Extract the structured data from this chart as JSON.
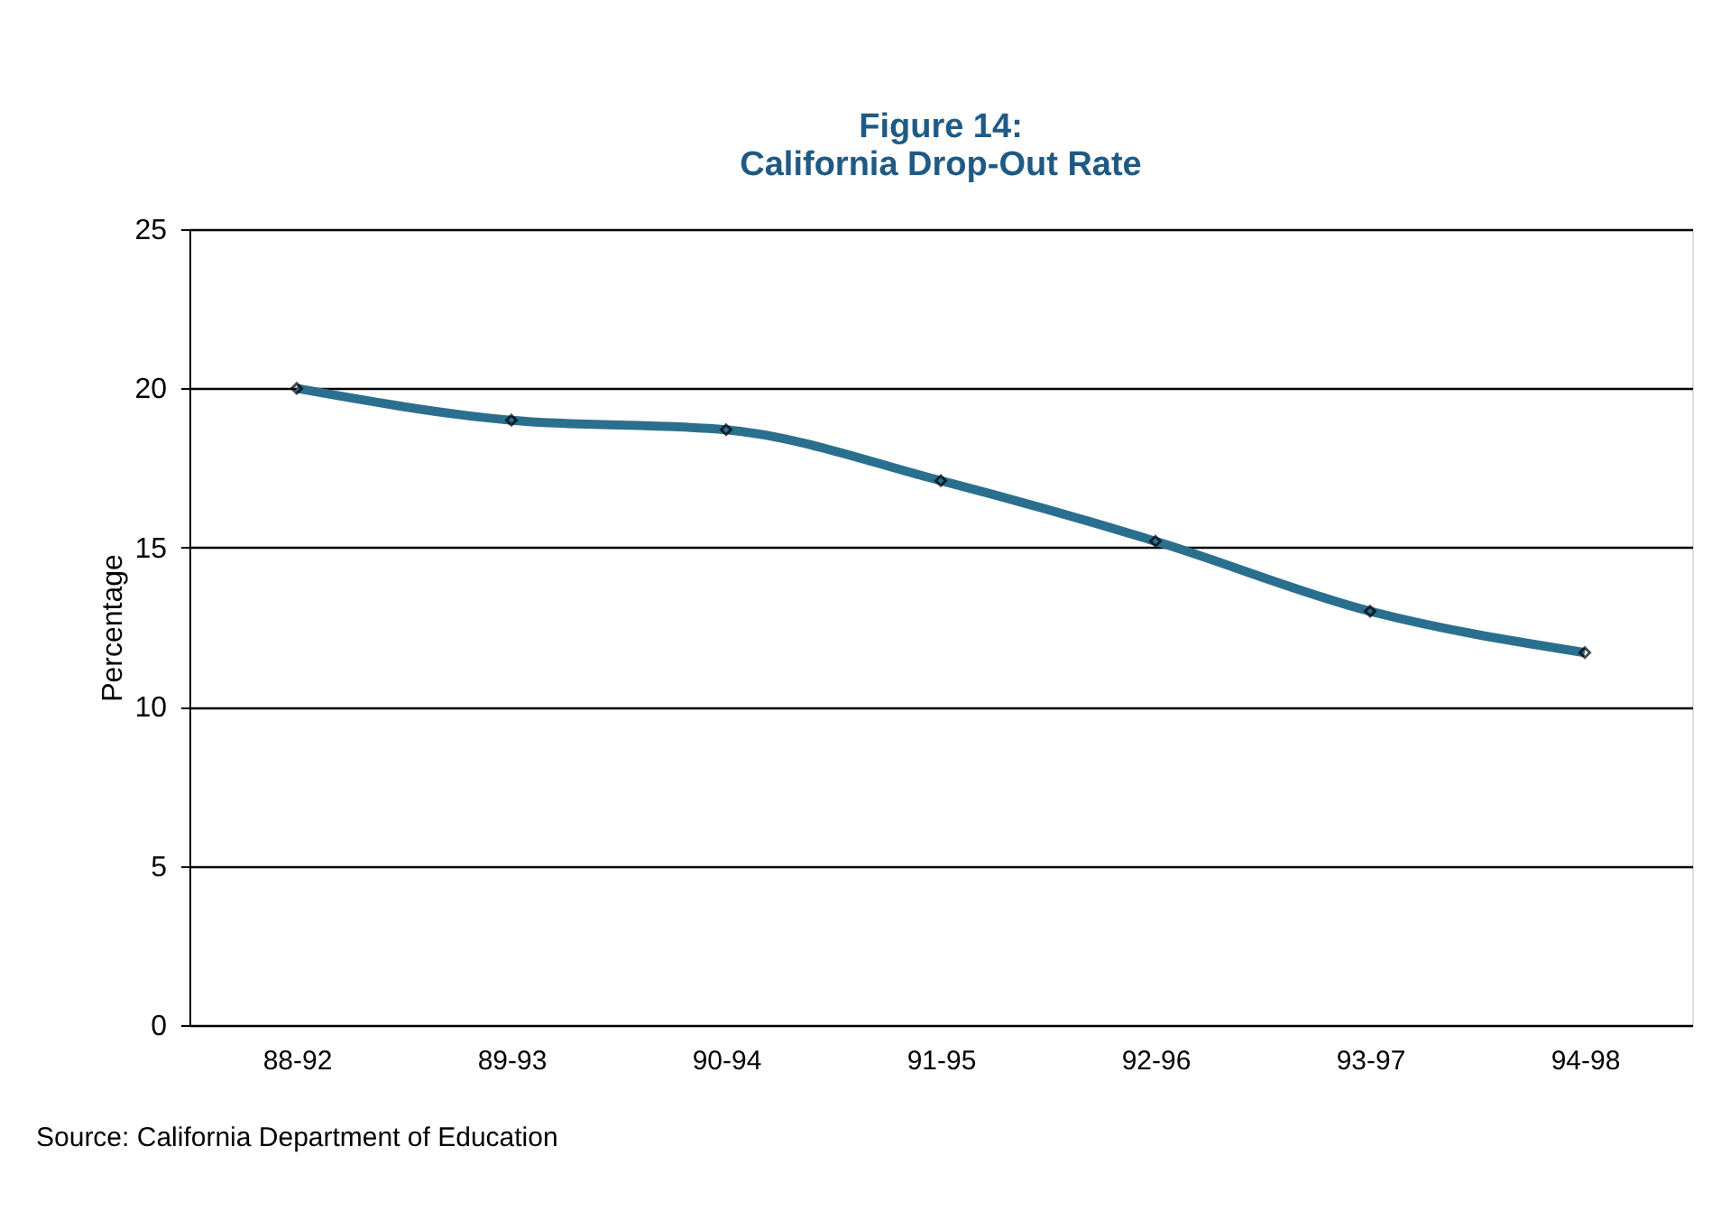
{
  "chart_data": {
    "type": "line",
    "title": "Figure 14:\nCalifornia Drop-Out Rate",
    "ylabel": "Percentage",
    "categories": [
      "88-92",
      "89-93",
      "90-94",
      "91-95",
      "92-96",
      "93-97",
      "94-98"
    ],
    "series": [
      {
        "color": "#2b6f8f",
        "values": [
          20.0,
          19.0,
          18.7,
          17.1,
          15.2,
          13.0,
          11.7
        ]
      }
    ],
    "ylim": [
      0,
      25
    ],
    "yticks": [
      0,
      5,
      10,
      15,
      20,
      25
    ],
    "grid": "y",
    "marker": "diamond",
    "line_style": "solid",
    "annotations": [
      "Source: California Department of Education"
    ]
  }
}
